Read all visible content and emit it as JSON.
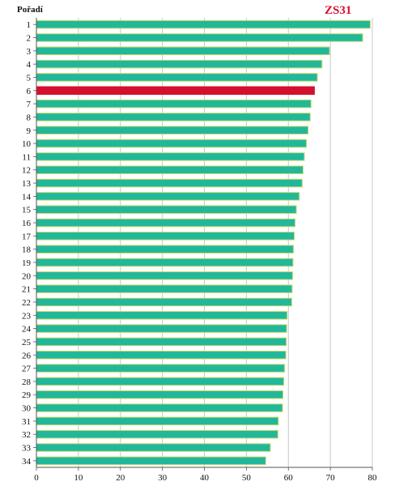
{
  "chart_data": {
    "type": "bar",
    "orientation": "horizontal",
    "title": "ZS31",
    "ylabel": "Pořadí",
    "xlabel": "",
    "xlim": [
      0,
      80
    ],
    "xticks": [
      0,
      10,
      20,
      30,
      40,
      50,
      60,
      70,
      80
    ],
    "grid": "vertical",
    "categories": [
      "1",
      "2",
      "3",
      "4",
      "5",
      "6",
      "7",
      "8",
      "9",
      "10",
      "11",
      "12",
      "13",
      "14",
      "15",
      "16",
      "17",
      "18",
      "19",
      "20",
      "21",
      "22",
      "23",
      "24",
      "25",
      "26",
      "27",
      "28",
      "29",
      "30",
      "31",
      "32",
      "33",
      "34"
    ],
    "values": [
      79.5,
      77.7,
      69.8,
      68.0,
      66.9,
      66.2,
      65.4,
      65.2,
      64.7,
      64.3,
      63.8,
      63.5,
      63.3,
      62.6,
      61.9,
      61.6,
      61.4,
      61.2,
      61.1,
      61.0,
      60.9,
      60.8,
      59.7,
      59.6,
      59.5,
      59.4,
      59.1,
      58.9,
      58.7,
      58.6,
      57.6,
      57.5,
      55.7,
      54.6
    ],
    "highlight_index": 5,
    "colors": {
      "bar": "#21b89a",
      "bar_edge": "#c8d86a",
      "highlight": "#d4102e",
      "grid": "#c8c8c8",
      "axis": "#555555"
    }
  }
}
